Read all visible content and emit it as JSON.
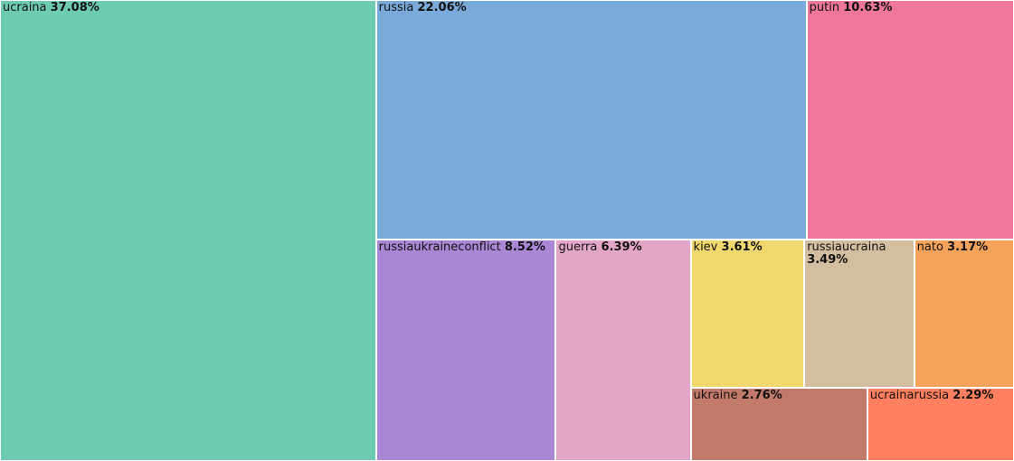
{
  "chart_data": {
    "type": "treemap",
    "categories": [
      "ucraina",
      "russia",
      "putin",
      "russiaukraineconflict",
      "guerra",
      "kiev",
      "russiaucraina",
      "nato",
      "ukraine",
      "ucrainarussia"
    ],
    "values": [
      37.08,
      22.06,
      10.63,
      8.52,
      6.39,
      3.61,
      3.49,
      3.17,
      2.76,
      2.29
    ],
    "value_labels": [
      "37.08%",
      "22.06%",
      "10.63%",
      "8.52%",
      "6.39%",
      "3.61%",
      "3.49%",
      "3.17%",
      "2.76%",
      "2.29%"
    ],
    "colors": [
      "#6dcbb2",
      "#7aaad9",
      "#ef779c",
      "#a987d4",
      "#e3a6c8",
      "#f0d86f",
      "#d3bf9f",
      "#f5a35b",
      "#c27b6b",
      "#ff7f5e"
    ]
  }
}
